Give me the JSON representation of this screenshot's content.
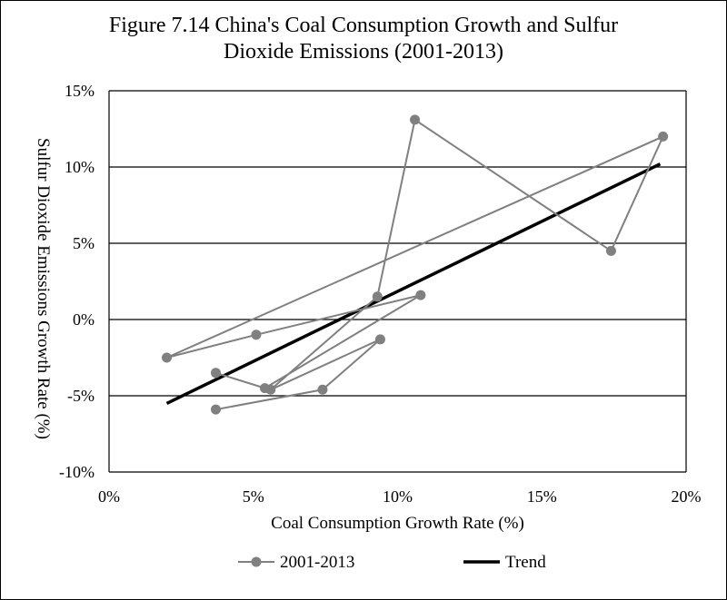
{
  "chart_data": {
    "type": "scatter",
    "title_line1": "Figure 7.14 China's Coal Consumption Growth and Sulfur",
    "title_line2": "Dioxide Emissions (2001-2013)",
    "xlabel": "Coal Consumption Growth Rate (%)",
    "ylabel": "Sulfur Dioxide Emissions Growth Rate (%)",
    "xlim": [
      0,
      20
    ],
    "ylim": [
      -10,
      15
    ],
    "x_ticks": [
      0,
      5,
      10,
      15,
      20
    ],
    "y_ticks": [
      -10,
      -5,
      0,
      5,
      10,
      15
    ],
    "x_tick_labels": [
      "0%",
      "5%",
      "10%",
      "15%",
      "20%"
    ],
    "y_tick_labels": [
      "-10%",
      "-5%",
      "0%",
      "5%",
      "10%",
      "15%"
    ],
    "grid": "horizontal",
    "legend_position": "bottom",
    "series": [
      {
        "name": "2001-2013",
        "style": "line-with-markers",
        "color": "#808080",
        "points": [
          {
            "x": 3.7,
            "y": -5.9
          },
          {
            "x": 7.4,
            "y": -4.6
          },
          {
            "x": 9.4,
            "y": -1.3
          },
          {
            "x": 5.6,
            "y": -4.6
          },
          {
            "x": 9.3,
            "y": 1.5
          },
          {
            "x": 10.6,
            "y": 13.1
          },
          {
            "x": 17.4,
            "y": 4.5
          },
          {
            "x": 19.2,
            "y": 12.0
          },
          {
            "x": 2.0,
            "y": -2.5
          },
          {
            "x": 5.1,
            "y": -1.0
          },
          {
            "x": 10.8,
            "y": 1.6
          },
          {
            "x": 5.4,
            "y": -4.5
          },
          {
            "x": 3.7,
            "y": -3.5
          }
        ]
      },
      {
        "name": "Trend",
        "style": "line",
        "color": "#000000",
        "points": [
          {
            "x": 2.0,
            "y": -5.5
          },
          {
            "x": 19.1,
            "y": 10.2
          }
        ]
      }
    ]
  }
}
